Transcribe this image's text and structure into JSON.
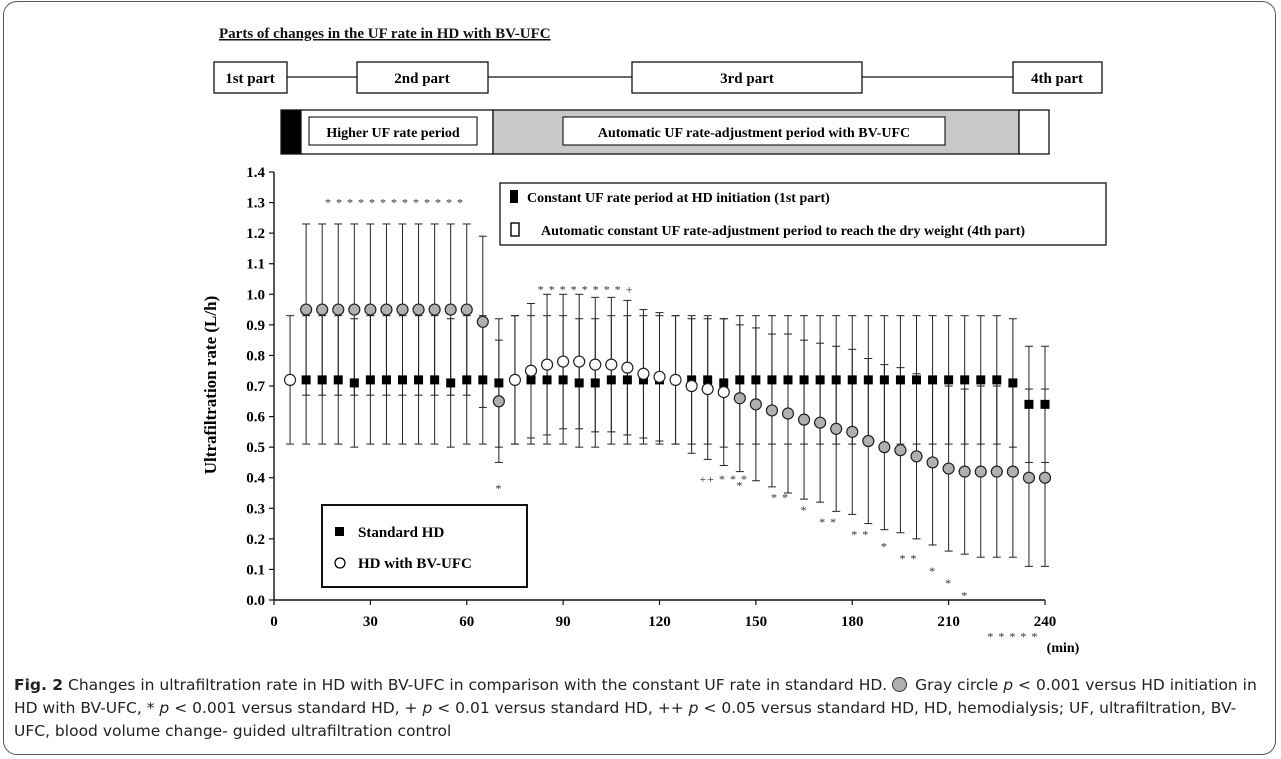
{
  "parts": {
    "title": "Parts of changes in the UF rate in HD with BV-UFC",
    "labels": [
      "1st part",
      "2nd part",
      "3rd part",
      "4th part"
    ],
    "period_labels": [
      "Higher UF rate period",
      "Automatic UF rate-adjustment period with BV-UFC"
    ],
    "period_colors": {
      "part1": "#000000",
      "part2": "#ffffff",
      "part3": "#c8c8c8",
      "part4": "#ffffff"
    }
  },
  "caption": {
    "fig": "Fig. 2",
    "line1": "Changes in ultrafiltration rate in HD with BV-UFC in comparison with the constant UF rate in standard HD.",
    "gray_text": "Gray circle",
    "p": "p",
    "gray_cond": "< 0.001 versus HD initiation in HD with BV-UFC,",
    "star": "*",
    "star_cond": "< 0.001 versus standard HD,",
    "plus": "+",
    "plus_cond": "< 0.01 versus standard HD,",
    "pplus": "++",
    "pplus_cond": "< 0.05 versus standard HD, HD, hemodialysis; UF, ultrafiltration, BV-UFC, blood volume change- guided ultrafiltration control"
  },
  "chart_data": {
    "type": "scatter",
    "title": "",
    "xlabel": "(min)",
    "ylabel": "Ultrafiltration rate (L/h)",
    "xlim": [
      0,
      240
    ],
    "ylim": [
      0.0,
      1.4
    ],
    "xticks": [
      0,
      30,
      60,
      90,
      120,
      150,
      180,
      210,
      240
    ],
    "yticks": [
      0.0,
      0.1,
      0.2,
      0.3,
      0.4,
      0.5,
      0.6,
      0.7,
      0.8,
      0.9,
      1.0,
      1.1,
      1.2,
      1.3,
      1.4
    ],
    "grid": false,
    "legend_top": [
      {
        "marker": "black-rect",
        "label": "Constant UF rate period at HD initiation (1st part)"
      },
      {
        "marker": "open-rect",
        "label": "Automatic constant UF rate-adjustment period to reach the dry weight (4th part)"
      }
    ],
    "legend_bottom": [
      {
        "marker": "black-square",
        "label": "Standard HD"
      },
      {
        "marker": "open-circle",
        "label": "HD with BV-UFC"
      }
    ],
    "series": [
      {
        "name": "Standard HD",
        "marker": "square",
        "color": "#000000",
        "x": [
          10,
          15,
          20,
          25,
          30,
          35,
          40,
          45,
          50,
          55,
          60,
          65,
          70,
          75,
          80,
          85,
          90,
          95,
          100,
          105,
          110,
          115,
          120,
          125,
          130,
          135,
          140,
          145,
          150,
          155,
          160,
          165,
          170,
          175,
          180,
          185,
          190,
          195,
          200,
          205,
          210,
          215,
          220,
          225,
          230,
          235,
          240
        ],
        "y": [
          0.72,
          0.72,
          0.72,
          0.71,
          0.72,
          0.72,
          0.72,
          0.72,
          0.72,
          0.71,
          0.72,
          0.72,
          0.71,
          0.72,
          0.72,
          0.72,
          0.72,
          0.71,
          0.71,
          0.72,
          0.72,
          0.72,
          0.72,
          0.72,
          0.72,
          0.72,
          0.71,
          0.72,
          0.72,
          0.72,
          0.72,
          0.72,
          0.72,
          0.72,
          0.72,
          0.72,
          0.72,
          0.72,
          0.72,
          0.72,
          0.72,
          0.72,
          0.72,
          0.72,
          0.71,
          0.64,
          0.64
        ],
        "error": [
          0.21,
          0.21,
          0.21,
          0.21,
          0.21,
          0.21,
          0.21,
          0.21,
          0.21,
          0.21,
          0.21,
          0.21,
          0.21,
          0.21,
          0.21,
          0.21,
          0.21,
          0.21,
          0.21,
          0.21,
          0.21,
          0.21,
          0.21,
          0.21,
          0.21,
          0.21,
          0.21,
          0.21,
          0.21,
          0.21,
          0.21,
          0.21,
          0.21,
          0.21,
          0.21,
          0.21,
          0.21,
          0.21,
          0.21,
          0.21,
          0.21,
          0.21,
          0.21,
          0.21,
          0.21,
          0.19,
          0.19
        ]
      },
      {
        "name": "HD with BV-UFC",
        "marker": "circle",
        "x": [
          5,
          10,
          15,
          20,
          25,
          30,
          35,
          40,
          45,
          50,
          55,
          60,
          65,
          70,
          75,
          80,
          85,
          90,
          95,
          100,
          105,
          110,
          115,
          120,
          125,
          130,
          135,
          140,
          145,
          150,
          155,
          160,
          165,
          170,
          175,
          180,
          185,
          190,
          195,
          200,
          205,
          210,
          215,
          220,
          225,
          230,
          235,
          240
        ],
        "y": [
          0.72,
          0.95,
          0.95,
          0.95,
          0.95,
          0.95,
          0.95,
          0.95,
          0.95,
          0.95,
          0.95,
          0.95,
          0.91,
          0.65,
          0.72,
          0.75,
          0.77,
          0.78,
          0.78,
          0.77,
          0.77,
          0.76,
          0.74,
          0.73,
          0.72,
          0.7,
          0.69,
          0.68,
          0.66,
          0.64,
          0.62,
          0.61,
          0.59,
          0.58,
          0.56,
          0.55,
          0.52,
          0.5,
          0.49,
          0.47,
          0.45,
          0.43,
          0.42,
          0.42,
          0.42,
          0.42,
          0.4,
          0.4
        ],
        "error": [
          0.21,
          0.28,
          0.28,
          0.28,
          0.28,
          0.28,
          0.28,
          0.28,
          0.28,
          0.28,
          0.28,
          0.28,
          0.28,
          0.2,
          0.21,
          0.22,
          0.23,
          0.22,
          0.22,
          0.22,
          0.22,
          0.22,
          0.21,
          0.21,
          0.21,
          0.22,
          0.23,
          0.24,
          0.24,
          0.25,
          0.25,
          0.26,
          0.26,
          0.26,
          0.27,
          0.27,
          0.27,
          0.27,
          0.27,
          0.27,
          0.27,
          0.27,
          0.27,
          0.28,
          0.28,
          0.28,
          0.29,
          0.29
        ],
        "gray_fill": [
          false,
          true,
          true,
          true,
          true,
          true,
          true,
          true,
          true,
          true,
          true,
          true,
          true,
          true,
          false,
          false,
          false,
          false,
          false,
          false,
          false,
          false,
          false,
          false,
          false,
          false,
          false,
          false,
          true,
          true,
          true,
          true,
          true,
          true,
          true,
          true,
          true,
          true,
          true,
          true,
          true,
          true,
          true,
          true,
          true,
          true,
          true,
          true
        ],
        "fill_colors": {
          "gray": "#b0b0b0",
          "white": "#ffffff"
        }
      }
    ],
    "annotations": [
      {
        "text": "* * * * * * * * * * * * *",
        "x": 37.5,
        "y": 1.3
      },
      {
        "text": "* * * * * * * * +",
        "x": 97,
        "y": 1.015
      },
      {
        "text": "*",
        "x": 70,
        "y": 0.365
      },
      {
        "text": "++ * * *",
        "x": 140,
        "y": 0.395
      },
      {
        "text": "*",
        "x": 145,
        "y": 0.375
      },
      {
        "text": "* *",
        "x": 157.5,
        "y": 0.335
      },
      {
        "text": "*",
        "x": 165,
        "y": 0.295
      },
      {
        "text": "* *",
        "x": 172.5,
        "y": 0.255
      },
      {
        "text": "* *",
        "x": 182.5,
        "y": 0.215
      },
      {
        "text": "*",
        "x": 190,
        "y": 0.175
      },
      {
        "text": "* *",
        "x": 197.5,
        "y": 0.135
      },
      {
        "text": "*",
        "x": 205,
        "y": 0.095
      },
      {
        "text": "*",
        "x": 210,
        "y": 0.055
      },
      {
        "text": "*",
        "x": 215,
        "y": 0.015
      },
      {
        "text": "* * * * *",
        "x": 230,
        "y": -0.12
      }
    ]
  }
}
